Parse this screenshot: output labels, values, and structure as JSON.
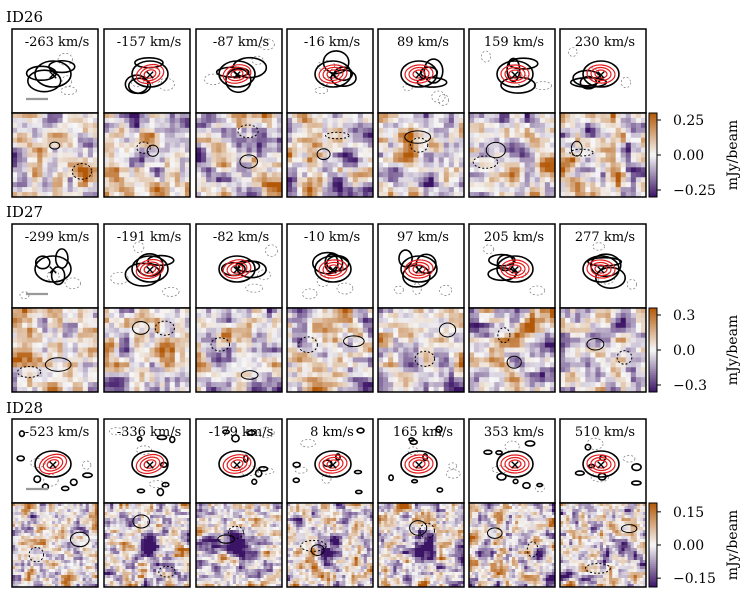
{
  "figure": {
    "colorbar_label": "mJy/beam",
    "colormap": {
      "low": "#3b1466",
      "mid": "#f7f7f7",
      "high": "#b35806"
    },
    "contour_colors": {
      "moment": "#000000",
      "model": "#e41a1c",
      "marker": "#8e1b8e",
      "scalebar": "#999999"
    }
  },
  "chart_data": [
    {
      "type": "heatmap",
      "title": "ID26",
      "channel_labels": [
        "-263 km/s",
        "-157 km/s",
        "-87 km/s",
        "-16 km/s",
        "89 km/s",
        "159 km/s",
        "230 km/s"
      ],
      "colorbar": {
        "ticks": [
          "0.25",
          "0.00",
          "−0.25"
        ],
        "tick_values": [
          0.25,
          0.0,
          -0.25
        ],
        "range": [
          -0.3,
          0.3
        ],
        "label": "mJy/beam"
      },
      "residual_level": "low"
    },
    {
      "type": "heatmap",
      "title": "ID27",
      "channel_labels": [
        "-299 km/s",
        "-191 km/s",
        "-82 km/s",
        "-10 km/s",
        "97 km/s",
        "205 km/s",
        "277 km/s"
      ],
      "colorbar": {
        "ticks": [
          "0.3",
          "0.0",
          "−0.3"
        ],
        "tick_values": [
          0.3,
          0.0,
          -0.3
        ],
        "range": [
          -0.36,
          0.36
        ],
        "label": "mJy/beam"
      },
      "residual_level": "low"
    },
    {
      "type": "heatmap",
      "title": "ID28",
      "channel_labels": [
        "-523 km/s",
        "-336 km/s",
        "-179 km/s",
        "8 km/s",
        "165 km/s",
        "353 km/s",
        "510 km/s"
      ],
      "colorbar": {
        "ticks": [
          "0.15",
          "0.00",
          "−0.15"
        ],
        "tick_values": [
          0.15,
          0.0,
          -0.15
        ],
        "range": [
          -0.19,
          0.19
        ],
        "label": "mJy/beam"
      },
      "residual_level": "high"
    }
  ]
}
